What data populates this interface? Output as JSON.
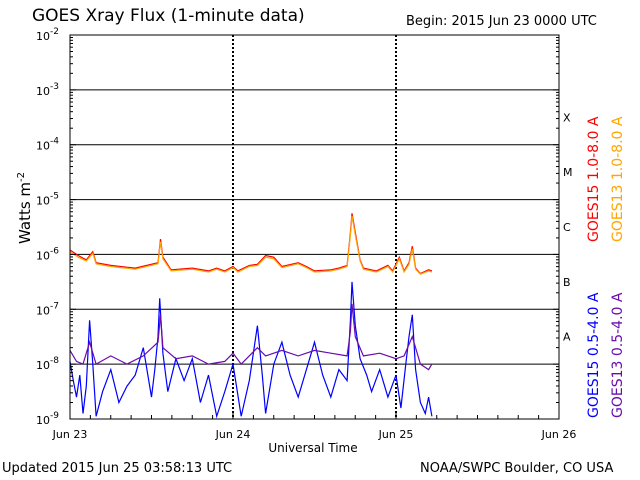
{
  "header": {
    "title": "GOES Xray Flux (1-minute data)",
    "begin": "Begin:  2015 Jun 23 0000 UTC"
  },
  "footer": {
    "updated": "Updated 2015 Jun 25 03:58:13 UTC",
    "credit": "NOAA/SWPC Boulder, CO USA"
  },
  "chart_data": {
    "type": "line",
    "title": "GOES Xray Flux (1-minute data)",
    "xlabel": "Universal Time",
    "ylabel": "Watts m",
    "ylabel_sup": "-2",
    "y_scale": "log",
    "xlim": [
      0,
      3
    ],
    "ylim_exp": [
      -9,
      -2
    ],
    "x_ticks": [
      {
        "x": 0,
        "label": "Jun 23"
      },
      {
        "x": 1,
        "label": "Jun 24"
      },
      {
        "x": 2,
        "label": "Jun 25"
      },
      {
        "x": 3,
        "label": "Jun 26"
      }
    ],
    "y_ticks": [
      {
        "exp": -2,
        "base": "10",
        "sup": "-2"
      },
      {
        "exp": -3,
        "base": "10",
        "sup": "-3"
      },
      {
        "exp": -4,
        "base": "10",
        "sup": "-4"
      },
      {
        "exp": -5,
        "base": "10",
        "sup": "-5"
      },
      {
        "exp": -6,
        "base": "10",
        "sup": "-6"
      },
      {
        "exp": -7,
        "base": "10",
        "sup": "-7"
      },
      {
        "exp": -8,
        "base": "10",
        "sup": "-8"
      },
      {
        "exp": -9,
        "base": "10",
        "sup": "-9"
      }
    ],
    "flare_classes": [
      {
        "label": "X",
        "exp": -3.5
      },
      {
        "label": "M",
        "exp": -4.5
      },
      {
        "label": "C",
        "exp": -5.5
      },
      {
        "label": "B",
        "exp": -6.5
      },
      {
        "label": "A",
        "exp": -7.5
      }
    ],
    "grid": "horizontal lines at each decade from 1e-3 to 1e-8; dashed verticals at day boundaries",
    "legend_position": "right",
    "series": [
      {
        "name": "GOES15 1.0-8.0 A",
        "color": "#ff0000",
        "points": [
          [
            0,
            -5.92
          ],
          [
            0.05,
            -6.02
          ],
          [
            0.1,
            -6.1
          ],
          [
            0.14,
            -5.95
          ],
          [
            0.16,
            -6.15
          ],
          [
            0.25,
            -6.2
          ],
          [
            0.4,
            -6.25
          ],
          [
            0.54,
            -6.15
          ],
          [
            0.555,
            -5.72
          ],
          [
            0.57,
            -6.05
          ],
          [
            0.62,
            -6.28
          ],
          [
            0.75,
            -6.25
          ],
          [
            0.85,
            -6.3
          ],
          [
            0.9,
            -6.25
          ],
          [
            0.95,
            -6.3
          ],
          [
            1.0,
            -6.22
          ],
          [
            1.03,
            -6.3
          ],
          [
            1.1,
            -6.2
          ],
          [
            1.15,
            -6.18
          ],
          [
            1.2,
            -6.02
          ],
          [
            1.25,
            -6.05
          ],
          [
            1.3,
            -6.22
          ],
          [
            1.4,
            -6.15
          ],
          [
            1.45,
            -6.22
          ],
          [
            1.5,
            -6.3
          ],
          [
            1.6,
            -6.28
          ],
          [
            1.65,
            -6.25
          ],
          [
            1.7,
            -6.2
          ],
          [
            1.72,
            -5.6
          ],
          [
            1.73,
            -5.25
          ],
          [
            1.75,
            -5.6
          ],
          [
            1.78,
            -6.1
          ],
          [
            1.8,
            -6.25
          ],
          [
            1.88,
            -6.3
          ],
          [
            1.95,
            -6.2
          ],
          [
            1.98,
            -6.3
          ],
          [
            2.02,
            -6.05
          ],
          [
            2.05,
            -6.3
          ],
          [
            2.08,
            -6.15
          ],
          [
            2.1,
            -5.85
          ],
          [
            2.12,
            -6.25
          ],
          [
            2.15,
            -6.35
          ],
          [
            2.2,
            -6.28
          ],
          [
            2.22,
            -6.3
          ]
        ]
      },
      {
        "name": "GOES13 1.0-8.0 A",
        "color": "#ffa500",
        "points": [
          [
            0,
            -5.95
          ],
          [
            0.05,
            -6.05
          ],
          [
            0.1,
            -6.12
          ],
          [
            0.14,
            -5.98
          ],
          [
            0.16,
            -6.17
          ],
          [
            0.25,
            -6.22
          ],
          [
            0.4,
            -6.27
          ],
          [
            0.54,
            -6.17
          ],
          [
            0.555,
            -5.77
          ],
          [
            0.57,
            -6.08
          ],
          [
            0.62,
            -6.3
          ],
          [
            0.75,
            -6.27
          ],
          [
            0.85,
            -6.32
          ],
          [
            0.9,
            -6.27
          ],
          [
            0.95,
            -6.32
          ],
          [
            1.0,
            -6.24
          ],
          [
            1.03,
            -6.32
          ],
          [
            1.1,
            -6.22
          ],
          [
            1.15,
            -6.2
          ],
          [
            1.2,
            -6.05
          ],
          [
            1.25,
            -6.08
          ],
          [
            1.3,
            -6.24
          ],
          [
            1.4,
            -6.17
          ],
          [
            1.45,
            -6.24
          ],
          [
            1.5,
            -6.32
          ],
          [
            1.6,
            -6.3
          ],
          [
            1.65,
            -6.27
          ],
          [
            1.7,
            -6.22
          ],
          [
            1.72,
            -5.65
          ],
          [
            1.73,
            -5.3
          ],
          [
            1.75,
            -5.65
          ],
          [
            1.78,
            -6.12
          ],
          [
            1.8,
            -6.27
          ],
          [
            1.88,
            -6.32
          ],
          [
            1.95,
            -6.22
          ],
          [
            1.98,
            -6.32
          ],
          [
            2.02,
            -6.08
          ],
          [
            2.05,
            -6.32
          ],
          [
            2.08,
            -6.18
          ],
          [
            2.1,
            -5.9
          ],
          [
            2.12,
            -6.27
          ],
          [
            2.15,
            -6.36
          ],
          [
            2.2,
            -6.3
          ],
          [
            2.22,
            -6.32
          ]
        ]
      },
      {
        "name": "GOES15 0.5-4.0 A",
        "color": "#0000ff",
        "points": [
          [
            0,
            -7.95
          ],
          [
            0.02,
            -8.3
          ],
          [
            0.04,
            -8.6
          ],
          [
            0.06,
            -8.2
          ],
          [
            0.08,
            -8.9
          ],
          [
            0.1,
            -8.4
          ],
          [
            0.12,
            -7.2
          ],
          [
            0.14,
            -8.0
          ],
          [
            0.16,
            -8.95
          ],
          [
            0.2,
            -8.5
          ],
          [
            0.25,
            -8.1
          ],
          [
            0.3,
            -8.7
          ],
          [
            0.35,
            -8.4
          ],
          [
            0.4,
            -8.2
          ],
          [
            0.45,
            -7.7
          ],
          [
            0.5,
            -8.6
          ],
          [
            0.52,
            -8.1
          ],
          [
            0.54,
            -7.5
          ],
          [
            0.55,
            -6.8
          ],
          [
            0.57,
            -7.8
          ],
          [
            0.6,
            -8.5
          ],
          [
            0.65,
            -7.9
          ],
          [
            0.7,
            -8.3
          ],
          [
            0.75,
            -7.9
          ],
          [
            0.8,
            -8.7
          ],
          [
            0.85,
            -8.2
          ],
          [
            0.9,
            -8.95
          ],
          [
            0.95,
            -8.5
          ],
          [
            1.0,
            -8.0
          ],
          [
            1.05,
            -8.95
          ],
          [
            1.1,
            -8.3
          ],
          [
            1.15,
            -7.3
          ],
          [
            1.18,
            -8.2
          ],
          [
            1.2,
            -8.9
          ],
          [
            1.25,
            -8.0
          ],
          [
            1.3,
            -7.6
          ],
          [
            1.35,
            -8.2
          ],
          [
            1.4,
            -8.6
          ],
          [
            1.45,
            -8.1
          ],
          [
            1.5,
            -7.6
          ],
          [
            1.55,
            -8.2
          ],
          [
            1.6,
            -8.6
          ],
          [
            1.65,
            -8.1
          ],
          [
            1.7,
            -8.3
          ],
          [
            1.72,
            -7.2
          ],
          [
            1.73,
            -6.5
          ],
          [
            1.75,
            -7.3
          ],
          [
            1.78,
            -7.9
          ],
          [
            1.82,
            -8.2
          ],
          [
            1.85,
            -8.5
          ],
          [
            1.9,
            -8.1
          ],
          [
            1.95,
            -8.6
          ],
          [
            2.0,
            -8.2
          ],
          [
            2.03,
            -8.8
          ],
          [
            2.06,
            -8.0
          ],
          [
            2.08,
            -7.5
          ],
          [
            2.1,
            -7.1
          ],
          [
            2.12,
            -8.1
          ],
          [
            2.15,
            -8.7
          ],
          [
            2.18,
            -8.9
          ],
          [
            2.2,
            -8.6
          ],
          [
            2.22,
            -8.95
          ]
        ]
      },
      {
        "name": "GOES13 0.5-4.0 A",
        "color": "#6a0dad",
        "points": [
          [
            0,
            -7.75
          ],
          [
            0.04,
            -7.95
          ],
          [
            0.08,
            -8.0
          ],
          [
            0.12,
            -7.6
          ],
          [
            0.16,
            -8.0
          ],
          [
            0.25,
            -7.85
          ],
          [
            0.35,
            -8.0
          ],
          [
            0.45,
            -7.85
          ],
          [
            0.54,
            -7.6
          ],
          [
            0.555,
            -7.1
          ],
          [
            0.57,
            -7.7
          ],
          [
            0.65,
            -7.9
          ],
          [
            0.75,
            -7.85
          ],
          [
            0.85,
            -8.0
          ],
          [
            0.95,
            -7.95
          ],
          [
            1.0,
            -7.8
          ],
          [
            1.05,
            -8.0
          ],
          [
            1.15,
            -7.7
          ],
          [
            1.2,
            -7.85
          ],
          [
            1.3,
            -7.75
          ],
          [
            1.4,
            -7.85
          ],
          [
            1.5,
            -7.75
          ],
          [
            1.6,
            -7.8
          ],
          [
            1.7,
            -7.85
          ],
          [
            1.72,
            -7.4
          ],
          [
            1.73,
            -6.9
          ],
          [
            1.75,
            -7.5
          ],
          [
            1.8,
            -7.85
          ],
          [
            1.9,
            -7.8
          ],
          [
            2.0,
            -7.9
          ],
          [
            2.05,
            -7.85
          ],
          [
            2.1,
            -7.5
          ],
          [
            2.15,
            -8.0
          ],
          [
            2.2,
            -8.1
          ],
          [
            2.22,
            -8.0
          ]
        ]
      }
    ]
  }
}
